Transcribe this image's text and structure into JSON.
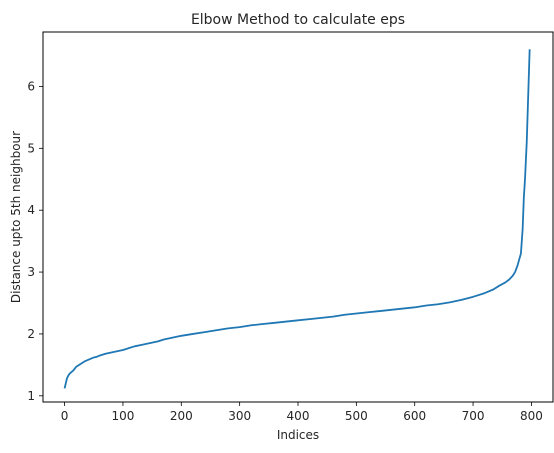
{
  "chart_data": {
    "type": "line",
    "title": "Elbow Method to calculate eps",
    "xlabel": "Indices",
    "ylabel": "Distance upto 5th neighbour",
    "xlim": [
      -37,
      837
    ],
    "ylim": [
      0.9,
      6.88
    ],
    "xticks": [
      0,
      100,
      200,
      300,
      400,
      500,
      600,
      700,
      800
    ],
    "yticks": [
      1,
      2,
      3,
      4,
      5,
      6
    ],
    "grid": false,
    "color": "#1f77b4",
    "series": [
      {
        "x": [
          0,
          2,
          4,
          6,
          8,
          10,
          15,
          20,
          25,
          30,
          35,
          40,
          45,
          50,
          55,
          60,
          70,
          80,
          90,
          100,
          110,
          120,
          130,
          140,
          150,
          160,
          170,
          180,
          190,
          200,
          220,
          240,
          260,
          280,
          300,
          320,
          340,
          360,
          380,
          400,
          420,
          440,
          460,
          480,
          500,
          520,
          540,
          560,
          580,
          600,
          620,
          640,
          660,
          680,
          700,
          720,
          735,
          745,
          755,
          762,
          768,
          772,
          776,
          779,
          782,
          785,
          787,
          789,
          790,
          791,
          792,
          793,
          794,
          795,
          796,
          797
        ],
        "y": [
          1.12,
          1.2,
          1.28,
          1.32,
          1.35,
          1.37,
          1.41,
          1.47,
          1.5,
          1.53,
          1.56,
          1.58,
          1.6,
          1.62,
          1.63,
          1.65,
          1.68,
          1.7,
          1.72,
          1.74,
          1.77,
          1.8,
          1.82,
          1.84,
          1.86,
          1.88,
          1.91,
          1.93,
          1.95,
          1.97,
          2.0,
          2.03,
          2.06,
          2.09,
          2.11,
          2.14,
          2.16,
          2.18,
          2.2,
          2.22,
          2.24,
          2.26,
          2.28,
          2.31,
          2.33,
          2.35,
          2.37,
          2.39,
          2.41,
          2.43,
          2.46,
          2.48,
          2.51,
          2.55,
          2.6,
          2.66,
          2.72,
          2.78,
          2.83,
          2.88,
          2.94,
          3.0,
          3.1,
          3.2,
          3.3,
          3.7,
          4.2,
          4.5,
          4.7,
          4.9,
          5.1,
          5.4,
          5.7,
          6.0,
          6.3,
          6.6
        ]
      }
    ]
  }
}
